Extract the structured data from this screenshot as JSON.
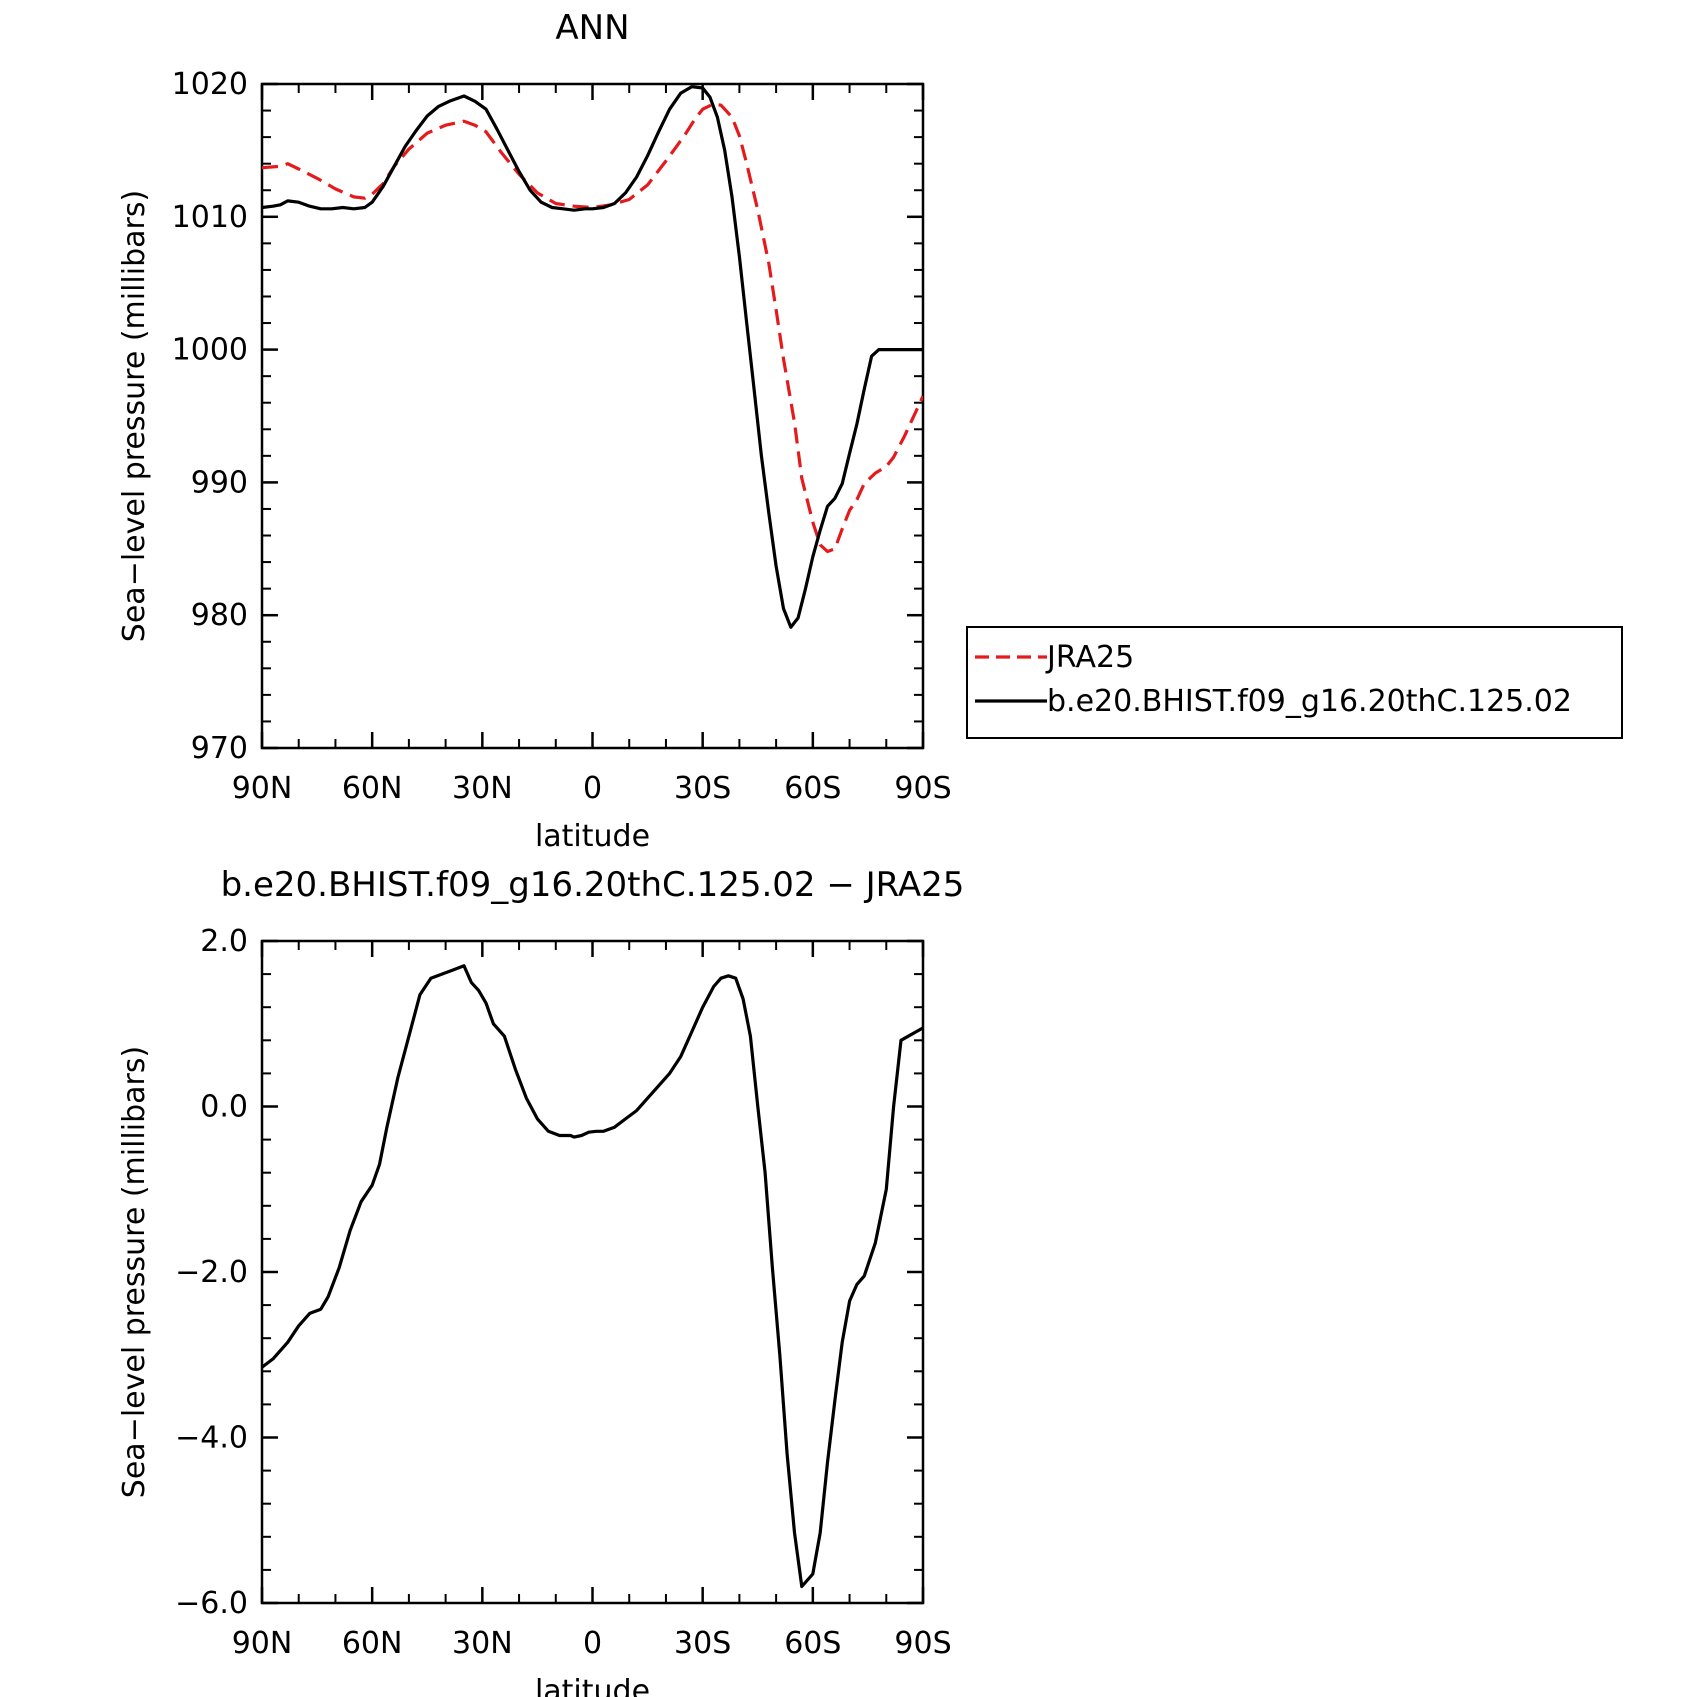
{
  "chart_data": [
    {
      "type": "line",
      "title": "ANN",
      "xlabel": "latitude",
      "ylabel": "Sea−level pressure (millibars)",
      "xlim": [
        90,
        -90
      ],
      "ylim": [
        970,
        1020
      ],
      "xticks": [
        90,
        60,
        30,
        0,
        -30,
        -60,
        -90
      ],
      "xtick_labels": [
        "90N",
        "60N",
        "30N",
        "0",
        "30S",
        "60S",
        "90S"
      ],
      "yticks": [
        970,
        980,
        990,
        1000,
        1010,
        1020
      ],
      "ytick_labels": [
        "970",
        "980",
        "990",
        "1000",
        "1010",
        "1020"
      ],
      "grid": false,
      "legend_position": "right",
      "series": [
        {
          "name": "JRA25",
          "color": "#e41a1c",
          "dash": "dashed",
          "x": [
            90,
            85,
            83,
            80,
            75,
            70,
            65,
            62,
            60,
            57,
            54,
            50,
            45,
            40,
            35,
            32,
            29,
            25,
            20,
            15,
            10,
            5,
            0,
            -5,
            -10,
            -15,
            -20,
            -25,
            -28,
            -30,
            -33,
            -35,
            -38,
            -40,
            -42,
            -45,
            -48,
            -50,
            -52,
            -55,
            -57,
            -60,
            -62,
            -64,
            -66,
            -68,
            -70,
            -72,
            -74,
            -77,
            -80,
            -82,
            -85,
            -88,
            -90
          ],
          "y": [
            1013.7,
            1013.8,
            1014.0,
            1013.6,
            1012.9,
            1012.1,
            1011.5,
            1011.4,
            1011.7,
            1012.5,
            1013.8,
            1015.1,
            1016.3,
            1016.9,
            1017.2,
            1016.9,
            1016.4,
            1014.9,
            1013.2,
            1011.8,
            1011.0,
            1010.8,
            1010.7,
            1010.9,
            1011.3,
            1012.4,
            1014.2,
            1016.1,
            1017.4,
            1018.1,
            1018.5,
            1018.4,
            1017.5,
            1016.1,
            1014.0,
            1010.5,
            1006.5,
            1003.0,
            999.3,
            994.5,
            990.3,
            987.0,
            985.3,
            984.8,
            985.0,
            986.5,
            987.9,
            988.7,
            989.9,
            990.7,
            991.2,
            991.9,
            993.5,
            995.3,
            996.5
          ]
        },
        {
          "name": "b.e20.BHIST.f09_g16.20thC.125.02",
          "color": "#000000",
          "dash": "solid",
          "x": [
            90,
            87,
            85,
            83,
            80,
            77,
            74,
            71,
            68,
            65,
            62,
            60,
            57,
            54,
            51,
            48,
            45,
            42,
            39,
            37,
            35,
            32,
            29,
            26,
            23,
            20,
            17,
            14,
            11,
            8,
            5,
            2,
            0,
            -3,
            -6,
            -9,
            -12,
            -15,
            -18,
            -21,
            -24,
            -27,
            -30,
            -32,
            -34,
            -36,
            -38,
            -40,
            -42,
            -44,
            -46,
            -48,
            -50,
            -52,
            -54,
            -56,
            -58,
            -60,
            -62,
            -64,
            -66,
            -68,
            -70,
            -72,
            -74,
            -76,
            -78,
            -80,
            -82,
            -84,
            -86,
            -88,
            -90
          ],
          "y": [
            1010.7,
            1010.8,
            1010.9,
            1011.2,
            1011.1,
            1010.8,
            1010.6,
            1010.6,
            1010.7,
            1010.6,
            1010.7,
            1011.1,
            1012.3,
            1013.8,
            1015.3,
            1016.5,
            1017.6,
            1018.3,
            1018.7,
            1018.9,
            1019.1,
            1018.7,
            1018.1,
            1016.6,
            1015.0,
            1013.4,
            1012.0,
            1011.1,
            1010.7,
            1010.6,
            1010.5,
            1010.6,
            1010.6,
            1010.7,
            1011.0,
            1011.8,
            1013.0,
            1014.6,
            1016.4,
            1018.1,
            1019.3,
            1019.8,
            1019.7,
            1019.0,
            1017.5,
            1015.0,
            1011.5,
            1007.0,
            1002.0,
            997.0,
            992.0,
            987.7,
            983.7,
            980.5,
            979.1,
            979.8,
            982.0,
            984.4,
            986.4,
            988.2,
            988.8,
            989.9,
            992.2,
            994.4,
            997.0,
            999.5,
            1000.0,
            1000.0,
            1000.0,
            1000.0,
            1000.0,
            1000.0,
            1000.0
          ]
        }
      ]
    },
    {
      "type": "line",
      "title": "b.e20.BHIST.f09_g16.20thC.125.02 − JRA25",
      "xlabel": "latitude",
      "ylabel": "Sea−level pressure (millibars)",
      "xlim": [
        90,
        -90
      ],
      "ylim": [
        -6.0,
        2.0
      ],
      "xticks": [
        90,
        60,
        30,
        0,
        -30,
        -60,
        -90
      ],
      "xtick_labels": [
        "90N",
        "60N",
        "30N",
        "0",
        "30S",
        "60S",
        "90S"
      ],
      "yticks": [
        -6.0,
        -4.0,
        -2.0,
        0.0,
        2.0
      ],
      "ytick_labels": [
        "−6.0",
        "−4.0",
        "−2.0",
        "0.0",
        "2.0"
      ],
      "grid": false,
      "series": [
        {
          "color": "#000000",
          "dash": "solid",
          "x": [
            90,
            87,
            85,
            83,
            80,
            77,
            74,
            72,
            69,
            66,
            63,
            60,
            58,
            56,
            53,
            50,
            47,
            44,
            41,
            38,
            35,
            33,
            31,
            29,
            27,
            24,
            21,
            18,
            15,
            12,
            9,
            6,
            5,
            3,
            1,
            -1,
            -3,
            -6,
            -9,
            -12,
            -15,
            -18,
            -21,
            -24,
            -27,
            -30,
            -33,
            -35,
            -37,
            -39,
            -41,
            -43,
            -45,
            -47,
            -49,
            -51,
            -53,
            -55,
            -57,
            -60,
            -62,
            -64,
            -66,
            -68,
            -70,
            -72,
            -74,
            -77,
            -80,
            -82,
            -84,
            -86,
            -88,
            -90
          ],
          "y": [
            -3.15,
            -3.05,
            -2.95,
            -2.85,
            -2.65,
            -2.5,
            -2.45,
            -2.3,
            -1.95,
            -1.5,
            -1.15,
            -0.95,
            -0.7,
            -0.25,
            0.35,
            0.85,
            1.35,
            1.55,
            1.6,
            1.65,
            1.7,
            1.5,
            1.4,
            1.25,
            1.0,
            0.85,
            0.45,
            0.1,
            -0.15,
            -0.3,
            -0.35,
            -0.35,
            -0.37,
            -0.35,
            -0.31,
            -0.3,
            -0.3,
            -0.25,
            -0.15,
            -0.05,
            0.1,
            0.25,
            0.4,
            0.6,
            0.9,
            1.2,
            1.45,
            1.55,
            1.58,
            1.55,
            1.3,
            0.85,
            0.0,
            -0.8,
            -1.95,
            -3.0,
            -4.2,
            -5.15,
            -5.8,
            -5.65,
            -5.15,
            -4.3,
            -3.55,
            -2.85,
            -2.35,
            -2.15,
            -2.05,
            -1.65,
            -1.0,
            0.0,
            0.8,
            0.85,
            0.9,
            0.95
          ]
        }
      ]
    }
  ]
}
